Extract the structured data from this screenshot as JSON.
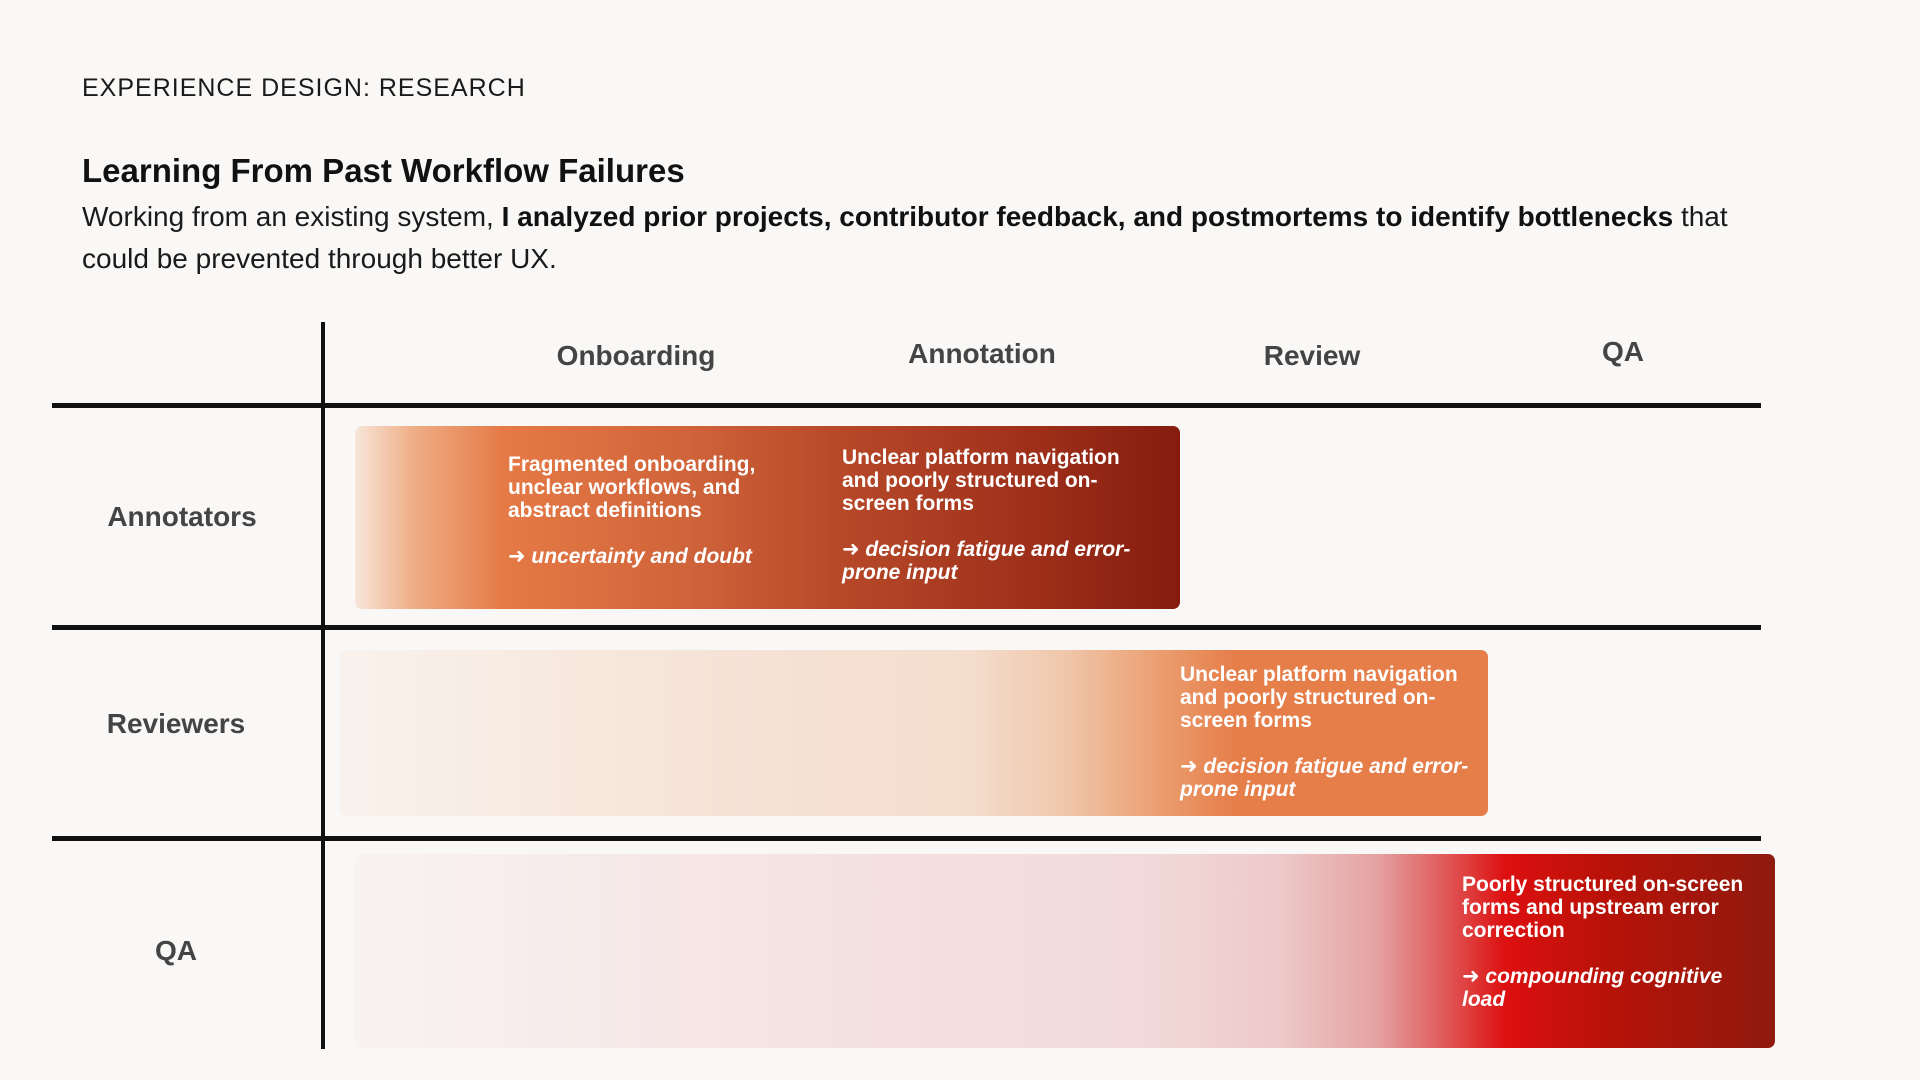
{
  "header": {
    "eyebrow": "EXPERIENCE DESIGN: RESEARCH",
    "title": "Learning From Past Workflow Failures",
    "subtitle_lead": "Working from an existing system, ",
    "subtitle_bold": "I analyzed prior projects, contributor feedback, and postmortems to identify bottlenecks",
    "subtitle_tail": " that could be prevented through better UX."
  },
  "matrix": {
    "columns": [
      {
        "label": "Onboarding"
      },
      {
        "label": "Annotation"
      },
      {
        "label": "Review"
      },
      {
        "label": "QA"
      }
    ],
    "rows": [
      {
        "label": "Annotators"
      },
      {
        "label": "Reviewers"
      },
      {
        "label": "QA"
      }
    ],
    "cells": {
      "annotators_onboarding": {
        "issue": "Fragmented onboarding, unclear workflows, and abstract definitions",
        "effect": "➜ uncertainty and doubt"
      },
      "annotators_annotation": {
        "issue": "Unclear platform navigation and poorly structured on-screen forms",
        "effect": "➜ decision fatigue and error-prone input"
      },
      "reviewers_review": {
        "issue": "Unclear platform navigation and poorly structured on-screen forms",
        "effect": "➜ decision fatigue and error-prone input"
      },
      "qa_qa": {
        "issue": "Poorly structured on-screen forms and upstream error correction",
        "effect": "➜ compounding cognitive load"
      }
    }
  },
  "colors": {
    "background": "#f9f8f6",
    "annotators_band_end": "#861c0e",
    "reviewers_band": "#e67e4a",
    "qa_band_peak": "#dd1010",
    "qa_band_end": "#8f1a0e"
  }
}
